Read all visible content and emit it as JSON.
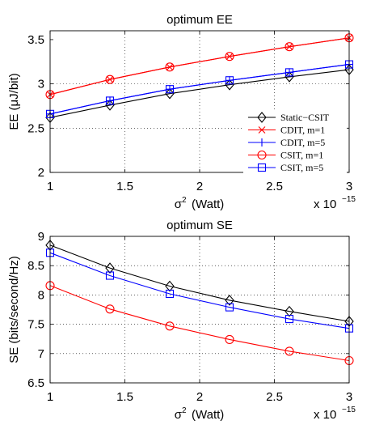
{
  "chart_data": [
    {
      "type": "line",
      "title": "optimum EE",
      "xlabel_symbol": "σ",
      "xlabel_sup": "2",
      "xlabel_unit": "(Watt)",
      "ylabel": "EE (μJ/bit)",
      "x_multiplier_base": "x 10",
      "x_multiplier_exp": "−15",
      "xlim": [
        1,
        3
      ],
      "ylim": [
        2,
        3.6
      ],
      "x_ticks": [
        1,
        1.5,
        2,
        2.5,
        3
      ],
      "x_tick_labels": [
        "1",
        "1.5",
        "2",
        "2.5",
        "3"
      ],
      "y_ticks": [
        2,
        2.5,
        3,
        3.5
      ],
      "y_tick_labels": [
        "2",
        "2.5",
        "3",
        "3.5"
      ],
      "grid": true,
      "legend_position": "bottom-right",
      "x": [
        1,
        1.4,
        1.8,
        2.2,
        2.6,
        3
      ],
      "series": [
        {
          "name": "Static−CSIT",
          "color": "#000000",
          "marker": "diamond",
          "values": [
            2.62,
            2.76,
            2.89,
            2.99,
            3.08,
            3.16
          ]
        },
        {
          "name": "CDIT, m=1",
          "color": "#ff0000",
          "marker": "x",
          "values": [
            2.88,
            3.05,
            3.19,
            3.31,
            3.42,
            3.52
          ]
        },
        {
          "name": "CDIT, m=5",
          "color": "#0000ff",
          "marker": "plus",
          "values": [
            2.66,
            2.81,
            2.94,
            3.04,
            3.13,
            3.22
          ]
        },
        {
          "name": "CSIT, m=1",
          "color": "#ff0000",
          "marker": "circle",
          "values": [
            2.88,
            3.05,
            3.19,
            3.31,
            3.42,
            3.52
          ]
        },
        {
          "name": "CSIT, m=5",
          "color": "#0000ff",
          "marker": "square",
          "values": [
            2.66,
            2.81,
            2.94,
            3.04,
            3.13,
            3.22
          ]
        }
      ]
    },
    {
      "type": "line",
      "title": "optimum SE",
      "xlabel_symbol": "σ",
      "xlabel_sup": "2",
      "xlabel_unit": "(Watt)",
      "ylabel": "SE (bits/second/Hz)",
      "x_multiplier_base": "x 10",
      "x_multiplier_exp": "−15",
      "xlim": [
        1,
        3
      ],
      "ylim": [
        6.5,
        9
      ],
      "x_ticks": [
        1,
        1.5,
        2,
        2.5,
        3
      ],
      "x_tick_labels": [
        "1",
        "1.5",
        "2",
        "2.5",
        "3"
      ],
      "y_ticks": [
        6.5,
        7,
        7.5,
        8,
        8.5,
        9
      ],
      "y_tick_labels": [
        "6.5",
        "7",
        "7.5",
        "8",
        "8.5",
        "9"
      ],
      "grid": true,
      "x": [
        1,
        1.4,
        1.8,
        2.2,
        2.6,
        3
      ],
      "series": [
        {
          "color": "#000000",
          "marker": "diamond",
          "values": [
            8.85,
            8.46,
            8.15,
            7.91,
            7.72,
            7.55
          ]
        },
        {
          "color": "#0000ff",
          "marker": "square",
          "values": [
            8.72,
            8.33,
            8.02,
            7.79,
            7.59,
            7.43
          ]
        },
        {
          "color": "#ff0000",
          "marker": "circle",
          "values": [
            8.16,
            7.76,
            7.47,
            7.24,
            7.04,
            6.88
          ]
        }
      ]
    }
  ]
}
